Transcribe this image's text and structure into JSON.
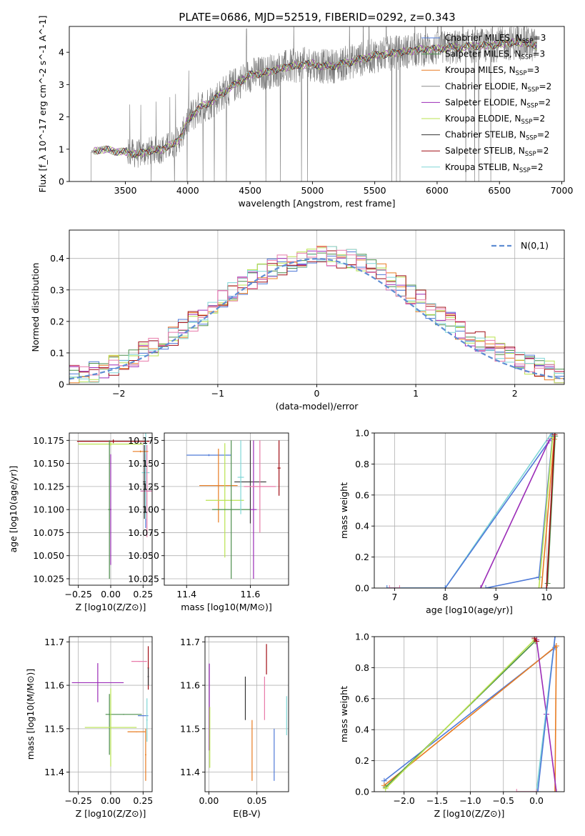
{
  "figure": {
    "title": "PLATE=0686, MJD=52519, FIBERID=0292, z=0.343"
  },
  "colors": {
    "Chabrier MILES": "#4f7ad8",
    "Salpeter MILES": "#4d8f4d",
    "Kroupa MILES": "#e87c22",
    "Chabrier ELODIE": "#8a8a8a",
    "Salpeter ELODIE": "#9b2cb7",
    "Kroupa ELODIE": "#b9e34f",
    "Chabrier STELIB": "#333333",
    "Salpeter STELIB": "#a00d14",
    "Kroupa STELIB": "#7fd6d6",
    "pink": "#e87aa9",
    "normal": "#5f8dd3"
  },
  "chart_data": [
    {
      "id": "spectrum",
      "type": "line",
      "xlabel": "wavelength [Angstrom, rest frame]",
      "ylabel": "Flux [f_λ 10^-17 erg cm^-2 s^-1 A^-1]",
      "xlim": [
        3050,
        7020
      ],
      "ylim": [
        0,
        4.8
      ],
      "xticks": [
        3500,
        4000,
        4500,
        5000,
        5500,
        6000,
        6500,
        7000
      ],
      "yticks": [
        0,
        1,
        2,
        3,
        4
      ],
      "data_range": [
        3225,
        6800
      ],
      "continuum": {
        "x": [
          3225,
          3300,
          3400,
          3500,
          3600,
          3700,
          3800,
          3900,
          3950,
          4000,
          4100,
          4200,
          4300,
          4400,
          4500,
          4600,
          4700,
          4800,
          4900,
          5000,
          5100,
          5200,
          5300,
          5400,
          5500,
          5600,
          5700,
          5800,
          5900,
          6000,
          6100,
          6200,
          6300,
          6400,
          6500,
          6600,
          6700,
          6800
        ],
        "y": [
          0.9,
          1.0,
          0.95,
          0.9,
          0.85,
          0.95,
          1.0,
          1.2,
          1.4,
          1.9,
          2.3,
          2.5,
          2.8,
          3.05,
          3.3,
          3.35,
          3.45,
          3.55,
          3.6,
          3.65,
          3.55,
          3.6,
          3.7,
          3.8,
          3.9,
          3.95,
          4.0,
          4.05,
          4.1,
          4.1,
          4.15,
          4.15,
          4.2,
          4.2,
          4.25,
          4.3,
          4.3,
          4.2
        ]
      },
      "legend": [
        {
          "name": "Chabrier MILES, N_SSP=3"
        },
        {
          "name": "Salpeter MILES, N_SSP=3"
        },
        {
          "name": "Kroupa MILES, N_SSP=3"
        },
        {
          "name": "Chabrier ELODIE, N_SSP=2"
        },
        {
          "name": "Salpeter ELODIE, N_SSP=2"
        },
        {
          "name": "Kroupa ELODIE, N_SSP=2"
        },
        {
          "name": "Chabrier STELIB, N_SSP=2"
        },
        {
          "name": "Salpeter STELIB, N_SSP=2"
        },
        {
          "name": "Kroupa STELIB, N_SSP=2"
        }
      ],
      "legend_position": "top-right"
    },
    {
      "id": "residuals",
      "type": "bar",
      "xlabel": "(data-model)/error",
      "ylabel": "Normed distribution",
      "xlim": [
        -2.5,
        2.5
      ],
      "ylim": [
        0,
        0.49
      ],
      "xticks": [
        -2,
        -1,
        0,
        1,
        2
      ],
      "yticks": [
        0,
        0.1,
        0.2,
        0.3,
        0.4
      ],
      "grid": true,
      "bin_start": -2.5,
      "bin_width": 0.1,
      "normal_curve": {
        "name": "N(0,1)",
        "mean": 0,
        "sigma": 1
      },
      "legend_position": "top-right"
    },
    {
      "id": "age-vs-Z",
      "type": "scatter",
      "xlabel": "Z [log10(Z/Z⊙)]",
      "ylabel": "age [log10(age/yr)]",
      "xlim": [
        -0.32,
        0.32
      ],
      "ylim": [
        10.018,
        10.183
      ],
      "xticks": [
        -0.25,
        0,
        0.25
      ],
      "yticks": [
        10.025,
        10.05,
        10.075,
        10.1,
        10.125,
        10.15,
        10.175
      ],
      "grid": true
    },
    {
      "id": "age-vs-mass",
      "type": "scatter",
      "xlabel": "mass [log10(M/M⊙)]",
      "ylabel": "",
      "xlim": [
        11.33,
        11.72
      ],
      "ylim": [
        10.018,
        10.183
      ],
      "xticks": [
        11.4,
        11.6
      ],
      "yticks": [
        10.025,
        10.05,
        10.075,
        10.1,
        10.125,
        10.15,
        10.175
      ],
      "grid": true
    },
    {
      "id": "weight-vs-age",
      "type": "line",
      "xlabel": "age [log10(age/yr)]",
      "ylabel": "mass weight",
      "xlim": [
        6.6,
        10.35
      ],
      "ylim": [
        0,
        1
      ],
      "xticks": [
        7,
        8,
        9,
        10
      ],
      "yticks": [
        0,
        0.2,
        0.4,
        0.6,
        0.8,
        1.0
      ],
      "grid": true,
      "series": [
        {
          "c": "Kroupa STELIB",
          "x": [
            6.85,
            8.0,
            10.1
          ],
          "y": [
            0,
            0,
            1.0
          ]
        },
        {
          "c": "Chabrier MILES",
          "x": [
            6.85,
            8.0,
            10.12
          ],
          "y": [
            0,
            0,
            0.98
          ]
        },
        {
          "c": "Salpeter ELODIE",
          "x": [
            8.7,
            10.05
          ],
          "y": [
            0,
            0.95
          ]
        },
        {
          "c": "Chabrier MILES",
          "x": [
            8.8,
            9.85,
            10.12
          ],
          "y": [
            0,
            0.07,
            0.99
          ]
        },
        {
          "c": "Kroupa ELODIE",
          "x": [
            9.85,
            10.12
          ],
          "y": [
            0,
            0.97
          ]
        },
        {
          "c": "Kroupa MILES",
          "x": [
            9.9,
            10.15
          ],
          "y": [
            0,
            0.96
          ]
        },
        {
          "c": "Salpeter MILES",
          "x": [
            10.02,
            10.17
          ],
          "y": [
            0.03,
            0.98
          ]
        },
        {
          "c": "Salpeter STELIB",
          "x": [
            10.0,
            10.16
          ],
          "y": [
            0,
            0.99
          ]
        },
        {
          "c": "pink",
          "x": [
            6.9,
            7.1
          ],
          "y": [
            0,
            0
          ]
        }
      ]
    },
    {
      "id": "mass-vs-Z",
      "type": "scatter",
      "xlabel": "Z [log10(Z/Z⊙)]",
      "ylabel": "mass [log10(M/M⊙)]",
      "xlim": [
        -0.32,
        0.32
      ],
      "ylim": [
        11.355,
        11.712
      ],
      "xticks": [
        -0.25,
        0,
        0.25
      ],
      "yticks": [
        11.4,
        11.5,
        11.6,
        11.7
      ],
      "grid": true
    },
    {
      "id": "mass-vs-EBV",
      "type": "scatter",
      "xlabel": "E(B-V)",
      "ylabel": "",
      "xlim": [
        -0.004,
        0.083
      ],
      "ylim": [
        11.355,
        11.712
      ],
      "xticks": [
        0,
        0.05
      ],
      "yticks": [
        11.4,
        11.5,
        11.6,
        11.7
      ],
      "grid": true
    },
    {
      "id": "weight-vs-Z",
      "type": "line",
      "xlabel": "Z [log10(Z/Z⊙)]",
      "ylabel": "mass weight",
      "xlim": [
        -2.45,
        0.42
      ],
      "ylim": [
        0,
        1
      ],
      "xticks": [
        -2.0,
        -1.5,
        -1.0,
        -0.5,
        0.0
      ],
      "yticks": [
        0,
        0.2,
        0.4,
        0.6,
        0.8,
        1.0
      ],
      "grid": true,
      "series": [
        {
          "c": "Chabrier MILES",
          "x": [
            -2.3,
            0.28
          ],
          "y": [
            0.07,
            0.93
          ]
        },
        {
          "c": "Kroupa MILES",
          "x": [
            -2.3,
            0.3
          ],
          "y": [
            0.04,
            0.94
          ]
        },
        {
          "c": "Salpeter MILES",
          "x": [
            -2.28,
            -0.02
          ],
          "y": [
            0.03,
            0.97
          ]
        },
        {
          "c": "Kroupa ELODIE",
          "x": [
            -2.28,
            -0.03
          ],
          "y": [
            0.02,
            0.98
          ]
        },
        {
          "c": "Kroupa MILES",
          "x": [
            0.28,
            0.3
          ],
          "y": [
            0.0,
            0.94
          ]
        },
        {
          "c": "Salpeter ELODIE",
          "x": [
            0.0,
            0.15,
            0.3
          ],
          "y": [
            0.98,
            0.5,
            0.0
          ]
        },
        {
          "c": "Kroupa STELIB",
          "x": [
            0.0,
            0.28
          ],
          "y": [
            0.0,
            1.0
          ]
        },
        {
          "c": "Chabrier MILES",
          "x": [
            0.02,
            0.28
          ],
          "y": [
            0.0,
            1.0
          ]
        },
        {
          "c": "Salpeter STELIB",
          "x": [
            -0.03,
            0.0
          ],
          "y": [
            0.99,
            0.97
          ]
        },
        {
          "c": "pink",
          "x": [
            -0.3,
            0.0
          ],
          "y": [
            0.0,
            0.0
          ]
        }
      ]
    }
  ]
}
